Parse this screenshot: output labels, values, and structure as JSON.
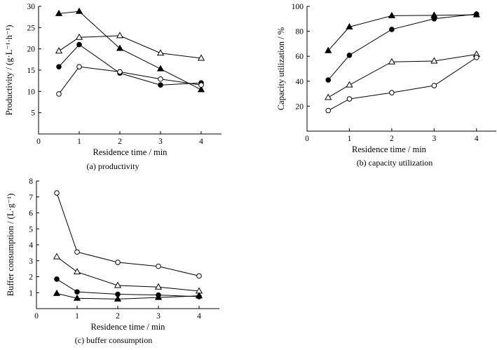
{
  "chart_data": [
    {
      "type": "line",
      "caption": "(a) productivity",
      "xlabel": "Residence time / min",
      "ylabel": "Productivity / (g·L⁻¹·h⁻¹)",
      "xlim": [
        0,
        4.5
      ],
      "ylim": [
        0,
        30
      ],
      "xticks": [
        0,
        1,
        2,
        3,
        4
      ],
      "yticks": [
        5,
        10,
        15,
        20,
        25,
        30
      ],
      "grid": false,
      "series": [
        {
          "marker": "filled-triangle",
          "x": [
            0.5,
            1,
            2,
            3,
            4
          ],
          "y": [
            28.3,
            28.8,
            20.1,
            15.3,
            10.4
          ]
        },
        {
          "marker": "open-triangle",
          "x": [
            0.5,
            1,
            2,
            3,
            4
          ],
          "y": [
            19.5,
            22.7,
            23.1,
            19.0,
            17.8
          ]
        },
        {
          "marker": "filled-circle",
          "x": [
            0.5,
            1,
            2,
            3,
            4
          ],
          "y": [
            15.8,
            21.0,
            14.3,
            11.5,
            12.0
          ]
        },
        {
          "marker": "open-circle",
          "x": [
            0.5,
            1,
            2,
            3,
            4
          ],
          "y": [
            9.4,
            15.8,
            14.6,
            12.9,
            11.5
          ]
        }
      ]
    },
    {
      "type": "line",
      "caption": "(b) capacity utilization",
      "xlabel": "Residence time / min",
      "ylabel": "Capacity utilization / %",
      "xlim": [
        0,
        4.5
      ],
      "ylim": [
        0,
        100
      ],
      "xticks": [
        0,
        1,
        2,
        3,
        4
      ],
      "yticks": [
        20,
        40,
        60,
        80,
        100
      ],
      "grid": false,
      "series": [
        {
          "marker": "filled-triangle",
          "x": [
            0.5,
            1,
            2,
            3,
            4
          ],
          "y": [
            64.5,
            83.5,
            92.5,
            92.8,
            93.2
          ]
        },
        {
          "marker": "filled-circle",
          "x": [
            0.5,
            1,
            2,
            3,
            4
          ],
          "y": [
            41.0,
            60.8,
            81.5,
            90.0,
            93.8
          ]
        },
        {
          "marker": "open-triangle",
          "x": [
            0.5,
            1,
            2,
            3,
            4
          ],
          "y": [
            27.0,
            37.0,
            55.5,
            56.2,
            61.5
          ]
        },
        {
          "marker": "open-circle",
          "x": [
            0.5,
            1,
            2,
            3,
            4
          ],
          "y": [
            16.5,
            25.8,
            30.8,
            36.5,
            59.0
          ]
        }
      ]
    },
    {
      "type": "line",
      "caption": "(c) buffer consumption",
      "xlabel": "Residence time / min",
      "ylabel": "Buffer consumption / (L·g⁻¹)",
      "xlim": [
        0,
        4.5
      ],
      "ylim": [
        0,
        8
      ],
      "xticks": [
        0,
        1,
        2,
        3,
        4
      ],
      "yticks": [
        1,
        2,
        3,
        4,
        5,
        6,
        7,
        8
      ],
      "grid": false,
      "series": [
        {
          "marker": "open-circle",
          "x": [
            0.5,
            1,
            2,
            3,
            4
          ],
          "y": [
            7.25,
            3.55,
            2.9,
            2.65,
            2.05
          ]
        },
        {
          "marker": "open-triangle",
          "x": [
            0.5,
            1,
            2,
            3,
            4
          ],
          "y": [
            3.25,
            2.3,
            1.45,
            1.35,
            1.1
          ]
        },
        {
          "marker": "filled-circle",
          "x": [
            0.5,
            1,
            2,
            3,
            4
          ],
          "y": [
            1.85,
            1.05,
            0.9,
            0.85,
            0.75
          ]
        },
        {
          "marker": "filled-triangle",
          "x": [
            0.5,
            1,
            2,
            3,
            4
          ],
          "y": [
            0.95,
            0.65,
            0.6,
            0.7,
            0.8
          ]
        }
      ]
    }
  ]
}
